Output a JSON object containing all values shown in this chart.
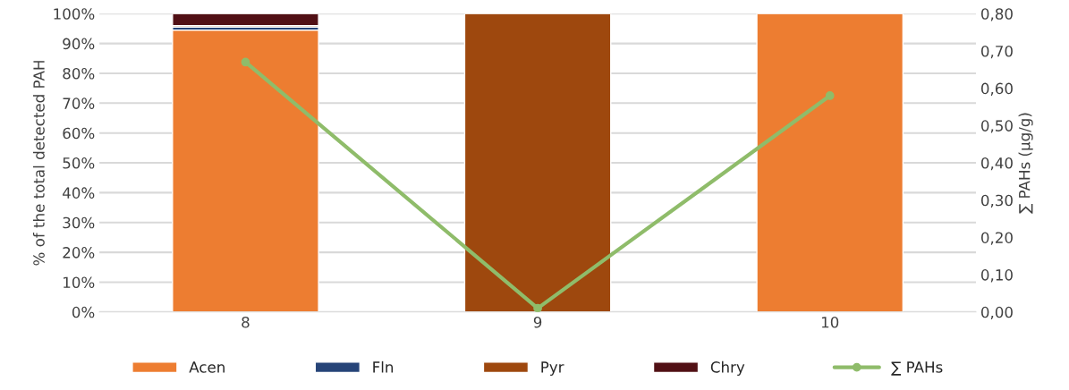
{
  "chart_data": {
    "type": "bar",
    "stacked": true,
    "categories": [
      "8",
      "9",
      "10"
    ],
    "ylabel": "% of the total detected PAH",
    "y2label": "∑ PAHs (µg/g)",
    "ylim": [
      0,
      100
    ],
    "yticks": [
      {
        "value": 0,
        "label": "0%"
      },
      {
        "value": 10,
        "label": "10%"
      },
      {
        "value": 20,
        "label": "20%"
      },
      {
        "value": 30,
        "label": "30%"
      },
      {
        "value": 40,
        "label": "40%"
      },
      {
        "value": 50,
        "label": "50%"
      },
      {
        "value": 60,
        "label": "60%"
      },
      {
        "value": 70,
        "label": "70%"
      },
      {
        "value": 80,
        "label": "80%"
      },
      {
        "value": 90,
        "label": "90%"
      },
      {
        "value": 100,
        "label": "100%"
      }
    ],
    "y2lim": [
      0,
      0.8
    ],
    "y2ticks": [
      {
        "value": 0,
        "label": "0,00"
      },
      {
        "value": 0.1,
        "label": "0,10"
      },
      {
        "value": 0.2,
        "label": "0,20"
      },
      {
        "value": 0.3,
        "label": "0,30"
      },
      {
        "value": 0.4,
        "label": "0,40"
      },
      {
        "value": 0.5,
        "label": "0,50"
      },
      {
        "value": 0.6,
        "label": "0,60"
      },
      {
        "value": 0.7,
        "label": "0,70"
      },
      {
        "value": 0.8,
        "label": "0,80"
      }
    ],
    "grid": "y",
    "legend": "bottom",
    "series": [
      {
        "name": "Acen",
        "color": "#ed7d31",
        "values": [
          94.5,
          null,
          100
        ]
      },
      {
        "name": "Fln",
        "color": "#264478",
        "values": [
          1.0,
          null,
          null
        ]
      },
      {
        "name": "Pyr",
        "color": "#9e480e",
        "values": [
          0.5,
          100,
          null
        ]
      },
      {
        "name": "Chry",
        "color": "#511015",
        "values": [
          4.0,
          null,
          null
        ]
      },
      {
        "name": "∑ PAHs",
        "type": "line",
        "axis": "y2",
        "color": "#8fbc6a",
        "marker": "circle",
        "values": [
          0.67,
          0.01,
          0.58
        ]
      }
    ]
  }
}
